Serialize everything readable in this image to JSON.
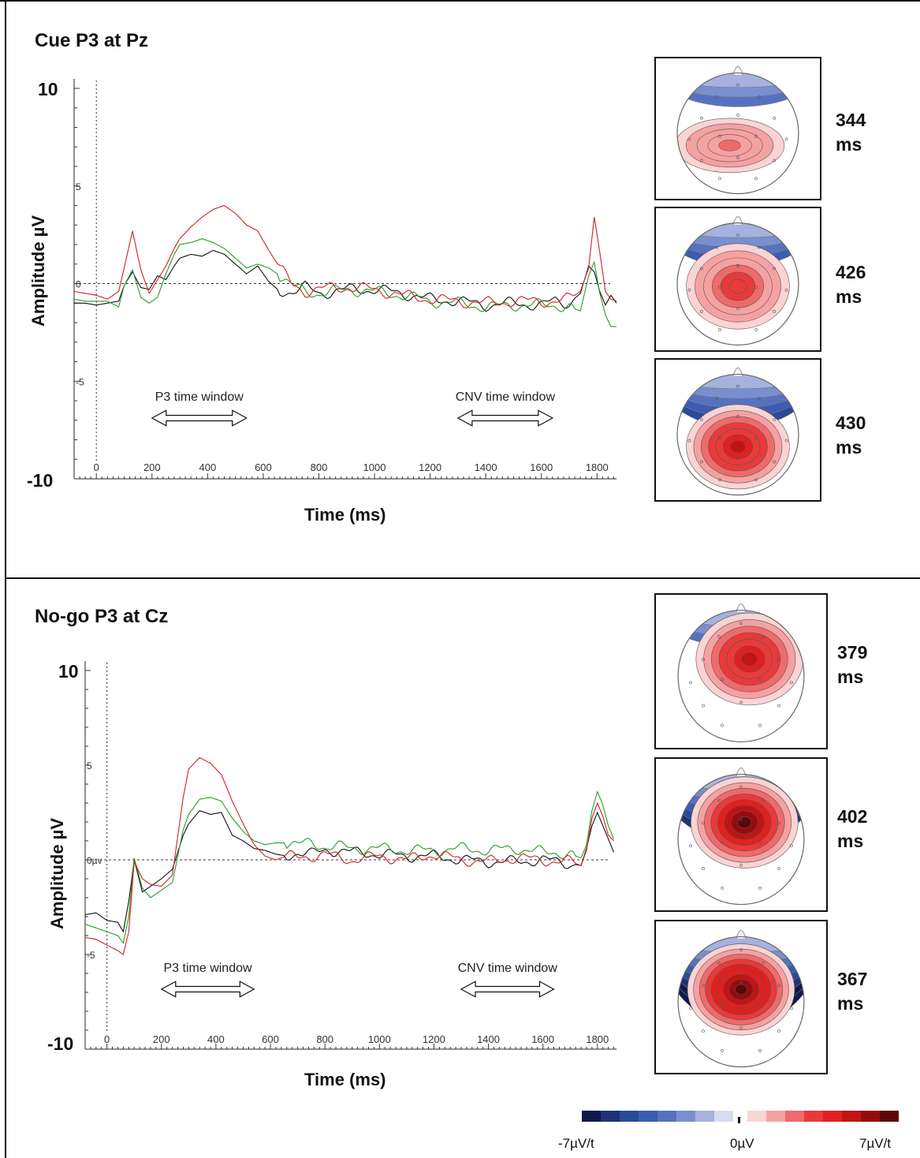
{
  "panels": [
    {
      "title": "Cue P3 at Pz",
      "ylabel": "Amplitude µV",
      "xlabel": "Time (ms)",
      "y_top_label": "10",
      "y_bottom_label": "-10",
      "window_labels": [
        "P3 time window",
        "CNV time window"
      ],
      "topomaps": [
        {
          "latency": "344",
          "unit": "ms",
          "border": "#111111"
        },
        {
          "latency": "426",
          "unit": "ms",
          "border": "#6cbf4a"
        },
        {
          "latency": "430",
          "unit": "ms",
          "border": "#e03a3a"
        }
      ]
    },
    {
      "title": "No-go P3 at Cz",
      "ylabel": "Amplitude µV",
      "xlabel": "Time (ms)",
      "y_top_label": "10",
      "y_bottom_label": "-10",
      "window_labels": [
        "P3 time window",
        "CNV time window"
      ],
      "topomaps": [
        {
          "latency": "379",
          "unit": "ms",
          "border": "#111111"
        },
        {
          "latency": "402",
          "unit": "ms",
          "border": "#6cbf4a"
        },
        {
          "latency": "367",
          "unit": "ms",
          "border": "#e03a3a"
        }
      ]
    }
  ],
  "colorbar": {
    "min_label": "-7µV/t",
    "mid_label": "0µV",
    "max_label": "7µV/t",
    "colors": [
      "#0d1a4d",
      "#1e3278",
      "#2a4a9a",
      "#3b5cb0",
      "#5672bf",
      "#7a8fcf",
      "#a6b2de",
      "#d6dbef",
      "#ffffff",
      "#fbd3d3",
      "#f6a1a1",
      "#ef6a6a",
      "#e83a3a",
      "#e02020",
      "#c21414",
      "#960c0c",
      "#5c0808"
    ]
  },
  "chart_data": [
    {
      "type": "line",
      "title": "Cue P3 at Pz",
      "xlabel": "Time (ms)",
      "ylabel": "Amplitude µV",
      "xlim": [
        -80,
        1870
      ],
      "ylim": [
        -10,
        10
      ],
      "x_ticks": [
        0,
        200,
        400,
        600,
        800,
        1000,
        1200,
        1400,
        1600,
        1800
      ],
      "y_tick_labels": [
        "10",
        "5",
        "0",
        "-5",
        "-10"
      ],
      "y_ticks": [
        10,
        5,
        0,
        -5,
        -10
      ],
      "windows": [
        {
          "label": "P3 time window",
          "from": 200,
          "to": 540
        },
        {
          "label": "CNV time window",
          "from": 1300,
          "to": 1640
        }
      ],
      "series": [
        {
          "color": "#111111",
          "x": [
            -80,
            -40,
            0,
            40,
            80,
            100,
            130,
            160,
            190,
            220,
            250,
            280,
            300,
            340,
            380,
            420,
            460,
            500,
            540,
            580,
            620,
            660,
            700,
            750,
            800,
            850,
            900,
            1000,
            1100,
            1200,
            1300,
            1400,
            1500,
            1600,
            1650,
            1700,
            1740,
            1770,
            1790,
            1810,
            1830,
            1850,
            1870
          ],
          "y": [
            -1,
            -1,
            -1.1,
            -1,
            -0.9,
            -0.1,
            0.6,
            -0.2,
            -0.3,
            0.4,
            0.2,
            0.9,
            1.3,
            1.5,
            1.4,
            1.7,
            1.5,
            1.0,
            0.5,
            0.9,
            0.1,
            -0.4,
            -0.4,
            -0.2,
            -0.5,
            -0.4,
            -0.3,
            -0.3,
            -0.5,
            -0.8,
            -0.9,
            -1.1,
            -1.0,
            -1.1,
            -0.9,
            -1.0,
            -0.5,
            0.9,
            0.6,
            -0.4,
            -1.1,
            -0.6,
            -1.0
          ]
        },
        {
          "color": "#2a9a2a",
          "x": [
            -80,
            -40,
            0,
            40,
            80,
            100,
            130,
            160,
            190,
            220,
            250,
            280,
            300,
            340,
            380,
            420,
            460,
            500,
            540,
            580,
            620,
            660,
            700,
            750,
            800,
            850,
            900,
            1000,
            1100,
            1200,
            1300,
            1400,
            1500,
            1600,
            1650,
            1700,
            1740,
            1770,
            1790,
            1810,
            1830,
            1850,
            1870
          ],
          "y": [
            -0.8,
            -0.9,
            -0.9,
            -0.9,
            -1.2,
            -0.1,
            0.7,
            -0.7,
            -1.0,
            -0.7,
            0.5,
            1.5,
            2.0,
            2.1,
            2.3,
            2.1,
            1.8,
            1.3,
            0.8,
            1.0,
            0.8,
            0.4,
            -0.1,
            -0.4,
            -0.5,
            -0.4,
            -0.3,
            -0.4,
            -0.6,
            -0.9,
            -1.0,
            -1.2,
            -1.1,
            -1.1,
            -1.1,
            -1.2,
            -1.4,
            0.4,
            1.1,
            -0.5,
            -1.6,
            -2.2,
            -2.2
          ]
        },
        {
          "color": "#d42020",
          "x": [
            -80,
            -40,
            0,
            40,
            80,
            100,
            130,
            160,
            190,
            220,
            250,
            280,
            300,
            340,
            380,
            420,
            460,
            500,
            540,
            580,
            620,
            660,
            700,
            750,
            800,
            850,
            900,
            1000,
            1100,
            1200,
            1300,
            1400,
            1500,
            1600,
            1650,
            1700,
            1740,
            1770,
            1790,
            1810,
            1830,
            1850,
            1870
          ],
          "y": [
            -0.4,
            -0.5,
            -0.6,
            -0.8,
            -0.4,
            0.8,
            2.7,
            0.7,
            -0.5,
            0.2,
            0.9,
            1.8,
            2.3,
            2.9,
            3.4,
            3.8,
            4.0,
            3.6,
            3.0,
            2.7,
            1.7,
            0.8,
            0.0,
            -0.4,
            -0.3,
            -0.2,
            -0.2,
            -0.3,
            -0.6,
            -0.8,
            -0.9,
            -1.0,
            -0.9,
            -0.9,
            -0.9,
            -0.8,
            -0.4,
            0.8,
            3.4,
            1.6,
            -0.4,
            -0.8,
            -0.9
          ]
        }
      ]
    },
    {
      "type": "line",
      "title": "No-go P3 at Cz",
      "xlabel": "Time (ms)",
      "ylabel": "Amplitude µV",
      "xlim": [
        -80,
        1870
      ],
      "ylim": [
        -10,
        10
      ],
      "x_ticks": [
        0,
        200,
        400,
        600,
        800,
        1000,
        1200,
        1400,
        1600,
        1800
      ],
      "y_tick_labels": [
        "10",
        "5",
        "0µv",
        "-5",
        "-10"
      ],
      "y_ticks": [
        10,
        5,
        0,
        -5,
        -10
      ],
      "windows": [
        {
          "label": "P3 time window",
          "from": 200,
          "to": 540
        },
        {
          "label": "CNV time window",
          "from": 1300,
          "to": 1640
        }
      ],
      "series": [
        {
          "color": "#111111",
          "x": [
            -80,
            -40,
            0,
            40,
            60,
            80,
            100,
            130,
            160,
            200,
            240,
            280,
            300,
            340,
            380,
            420,
            460,
            500,
            540,
            580,
            620,
            660,
            700,
            750,
            800,
            850,
            900,
            1000,
            1100,
            1200,
            1300,
            1400,
            1500,
            1600,
            1650,
            1700,
            1740,
            1760,
            1780,
            1800,
            1820,
            1840,
            1860
          ],
          "y": [
            -2.9,
            -2.8,
            -3.2,
            -3.3,
            -3.8,
            -2.2,
            0.0,
            -1.7,
            -1.4,
            -1.0,
            -0.5,
            1.3,
            1.9,
            2.6,
            2.4,
            2.5,
            1.3,
            1.0,
            0.6,
            0.5,
            0.3,
            0.2,
            0.4,
            0.3,
            0.5,
            0.5,
            0.4,
            0.3,
            0.2,
            0.2,
            0.0,
            -0.1,
            -0.1,
            0.0,
            -0.1,
            -0.2,
            -0.3,
            0.6,
            1.8,
            2.5,
            1.8,
            1.1,
            0.4
          ]
        },
        {
          "color": "#2a9a2a",
          "x": [
            -80,
            -40,
            0,
            40,
            60,
            80,
            100,
            130,
            160,
            200,
            240,
            280,
            300,
            340,
            380,
            420,
            460,
            500,
            540,
            580,
            620,
            660,
            700,
            750,
            800,
            850,
            900,
            1000,
            1100,
            1200,
            1300,
            1400,
            1500,
            1600,
            1650,
            1700,
            1740,
            1760,
            1780,
            1800,
            1820,
            1840,
            1860
          ],
          "y": [
            -3.4,
            -3.6,
            -3.8,
            -4.0,
            -4.4,
            -3.0,
            0.1,
            -1.5,
            -2.0,
            -1.6,
            -1.2,
            1.6,
            2.4,
            3.2,
            3.3,
            3.1,
            2.2,
            1.5,
            1.0,
            0.8,
            0.9,
            0.9,
            0.8,
            0.9,
            0.7,
            0.7,
            0.6,
            0.6,
            0.5,
            0.5,
            0.6,
            0.5,
            0.6,
            0.4,
            0.4,
            0.3,
            0.1,
            0.8,
            2.6,
            3.6,
            2.9,
            1.8,
            1.1
          ]
        },
        {
          "color": "#d42020",
          "x": [
            -80,
            -40,
            0,
            40,
            60,
            80,
            100,
            130,
            160,
            200,
            240,
            280,
            300,
            340,
            380,
            420,
            460,
            500,
            540,
            580,
            620,
            660,
            700,
            750,
            800,
            850,
            900,
            1000,
            1100,
            1200,
            1300,
            1400,
            1500,
            1600,
            1650,
            1700,
            1740,
            1760,
            1780,
            1800,
            1820,
            1840,
            1860
          ],
          "y": [
            -4.1,
            -4.2,
            -4.5,
            -4.8,
            -5.0,
            -3.8,
            -0.1,
            -1.0,
            -1.3,
            -1.4,
            -0.8,
            3.3,
            4.8,
            5.4,
            5.1,
            4.5,
            3.1,
            1.9,
            0.8,
            0.2,
            0.0,
            0.2,
            0.1,
            0.2,
            0.3,
            0.1,
            0.0,
            0.2,
            0.0,
            0.3,
            0.0,
            -0.1,
            0.1,
            0.0,
            -0.1,
            -0.1,
            -0.3,
            0.5,
            2.2,
            3.0,
            2.3,
            1.3,
            1.0
          ]
        }
      ]
    }
  ]
}
